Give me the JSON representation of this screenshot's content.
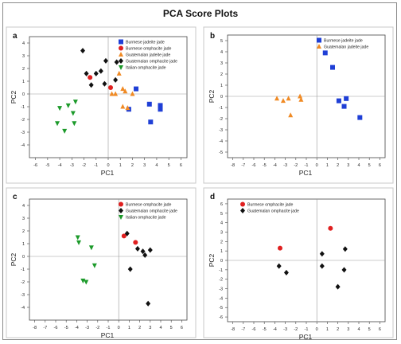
{
  "page_title": "PCA Score Plots",
  "chart_data": [
    {
      "type": "scatter",
      "panel_label": "a",
      "xlabel": "PC1",
      "ylabel": "PC2",
      "xlim": [
        -6.5,
        6.5
      ],
      "ylim": [
        -5,
        4.5
      ],
      "xticks": [
        -6,
        -5,
        -4,
        -3,
        -2,
        -1,
        0,
        1,
        2,
        3,
        4,
        5,
        6
      ],
      "yticks": [
        -4,
        -3,
        -2,
        -1,
        0,
        1,
        2,
        3,
        4
      ],
      "grid": false,
      "legend_position": "top-right",
      "series": [
        {
          "name": "Burmese jadeite jade",
          "color": "#1f3fd6",
          "marker": "square",
          "points": [
            [
              1.7,
              -1.2
            ],
            [
              2.3,
              0.4
            ],
            [
              3.4,
              -0.8
            ],
            [
              3.5,
              -2.2
            ],
            [
              4.3,
              -0.9
            ],
            [
              4.3,
              -1.2
            ]
          ]
        },
        {
          "name": "Burmese omphacite jade",
          "color": "#e02020",
          "marker": "circle",
          "points": [
            [
              -1.5,
              1.3
            ],
            [
              0.2,
              0.5
            ]
          ]
        },
        {
          "name": "Guatemalan jadeite jade",
          "color": "#f08a24",
          "marker": "triangle-up",
          "points": [
            [
              0.3,
              0.0
            ],
            [
              0.6,
              0.0
            ],
            [
              0.9,
              1.6
            ],
            [
              1.2,
              0.4
            ],
            [
              1.2,
              -1.0
            ],
            [
              1.6,
              -1.1
            ],
            [
              2.0,
              0.0
            ],
            [
              1.4,
              0.2
            ]
          ]
        },
        {
          "name": "Guatemalan omphacite jade",
          "color": "#111111",
          "marker": "diamond",
          "points": [
            [
              -2.1,
              3.4
            ],
            [
              -1.8,
              1.6
            ],
            [
              -1.4,
              0.7
            ],
            [
              -1.0,
              1.6
            ],
            [
              -0.6,
              1.8
            ],
            [
              -0.3,
              0.8
            ],
            [
              -0.2,
              2.6
            ],
            [
              0.7,
              2.5
            ],
            [
              0.6,
              1.1
            ]
          ]
        },
        {
          "name": "Italian omphacite jade",
          "color": "#1c9a2a",
          "marker": "triangle-down",
          "points": [
            [
              -2.7,
              -0.6
            ],
            [
              -3.3,
              -0.9
            ],
            [
              -4.0,
              -1.1
            ],
            [
              -2.9,
              -1.5
            ],
            [
              -4.2,
              -2.3
            ],
            [
              -2.8,
              -2.3
            ],
            [
              -3.6,
              -2.9
            ]
          ]
        }
      ]
    },
    {
      "type": "scatter",
      "panel_label": "b",
      "xlabel": "PC1",
      "ylabel": "PC2",
      "xlim": [
        -8.5,
        6.5
      ],
      "ylim": [
        -5.5,
        5.5
      ],
      "xticks": [
        -8,
        -7,
        -6,
        -5,
        -4,
        -3,
        -2,
        -1,
        0,
        1,
        2,
        3,
        4,
        5,
        6
      ],
      "yticks": [
        -5,
        -4,
        -3,
        -2,
        -1,
        0,
        1,
        2,
        3,
        4,
        5
      ],
      "grid": false,
      "legend_position": "top-right",
      "series": [
        {
          "name": "Burmese jadeite jade",
          "color": "#1f3fd6",
          "marker": "square",
          "points": [
            [
              0.8,
              3.9
            ],
            [
              1.5,
              2.6
            ],
            [
              2.1,
              -0.4
            ],
            [
              2.6,
              -0.9
            ],
            [
              2.8,
              -0.2
            ],
            [
              4.1,
              -1.9
            ]
          ]
        },
        {
          "name": "Guatemalan jadeite jade",
          "color": "#f08a24",
          "marker": "triangle-up",
          "points": [
            [
              -3.8,
              -0.2
            ],
            [
              -3.2,
              -0.4
            ],
            [
              -2.7,
              -0.2
            ],
            [
              -2.5,
              -1.7
            ],
            [
              -1.6,
              0.0
            ],
            [
              -1.5,
              -0.3
            ]
          ]
        }
      ]
    },
    {
      "type": "scatter",
      "panel_label": "c",
      "xlabel": "PC1",
      "ylabel": "PC2",
      "xlim": [
        -8.5,
        6.5
      ],
      "ylim": [
        -5,
        4.5
      ],
      "xticks": [
        -8,
        -7,
        -6,
        -5,
        -4,
        -3,
        -2,
        -1,
        0,
        1,
        2,
        3,
        4,
        5,
        6
      ],
      "yticks": [
        -4,
        -3,
        -2,
        -1,
        0,
        1,
        2,
        3,
        4
      ],
      "grid": false,
      "legend_position": "top-right",
      "series": [
        {
          "name": "Burmese omphacite jade",
          "color": "#e02020",
          "marker": "circle",
          "points": [
            [
              0.5,
              1.6
            ],
            [
              1.6,
              1.1
            ]
          ]
        },
        {
          "name": "Guatemalan omphacite jade",
          "color": "#111111",
          "marker": "diamond",
          "points": [
            [
              0.8,
              1.8
            ],
            [
              1.8,
              0.6
            ],
            [
              2.3,
              0.4
            ],
            [
              2.5,
              0.1
            ],
            [
              3.0,
              0.5
            ],
            [
              1.1,
              -1.0
            ],
            [
              2.8,
              -3.7
            ]
          ]
        },
        {
          "name": "Italian omphacite jade",
          "color": "#1c9a2a",
          "marker": "triangle-down",
          "points": [
            [
              -3.9,
              1.5
            ],
            [
              -3.8,
              1.1
            ],
            [
              -2.6,
              0.7
            ],
            [
              -2.3,
              -0.7
            ],
            [
              -3.4,
              -1.9
            ],
            [
              -3.1,
              -2.0
            ]
          ]
        }
      ]
    },
    {
      "type": "scatter",
      "panel_label": "d",
      "xlabel": "PC1",
      "ylabel": "PC2",
      "xlim": [
        -8.5,
        6.5
      ],
      "ylim": [
        -6.5,
        6.5
      ],
      "xticks": [
        -8,
        -7,
        -6,
        -5,
        -4,
        -3,
        -2,
        -1,
        0,
        1,
        2,
        3,
        4,
        5,
        6
      ],
      "yticks": [
        -6,
        -5,
        -4,
        -3,
        -2,
        -1,
        0,
        1,
        2,
        3,
        4,
        5,
        6
      ],
      "grid": false,
      "legend_position": "top-left",
      "series": [
        {
          "name": "Burmese omphacite jade",
          "color": "#e02020",
          "marker": "circle",
          "points": [
            [
              -3.5,
              1.3
            ],
            [
              1.3,
              3.4
            ]
          ]
        },
        {
          "name": "Guatemalan omphacite jade",
          "color": "#111111",
          "marker": "diamond",
          "points": [
            [
              -3.6,
              -0.6
            ],
            [
              -2.9,
              -1.3
            ],
            [
              0.5,
              0.7
            ],
            [
              0.5,
              -0.6
            ],
            [
              2.0,
              -2.8
            ],
            [
              2.7,
              1.2
            ],
            [
              2.6,
              -1.0
            ]
          ]
        }
      ]
    }
  ]
}
